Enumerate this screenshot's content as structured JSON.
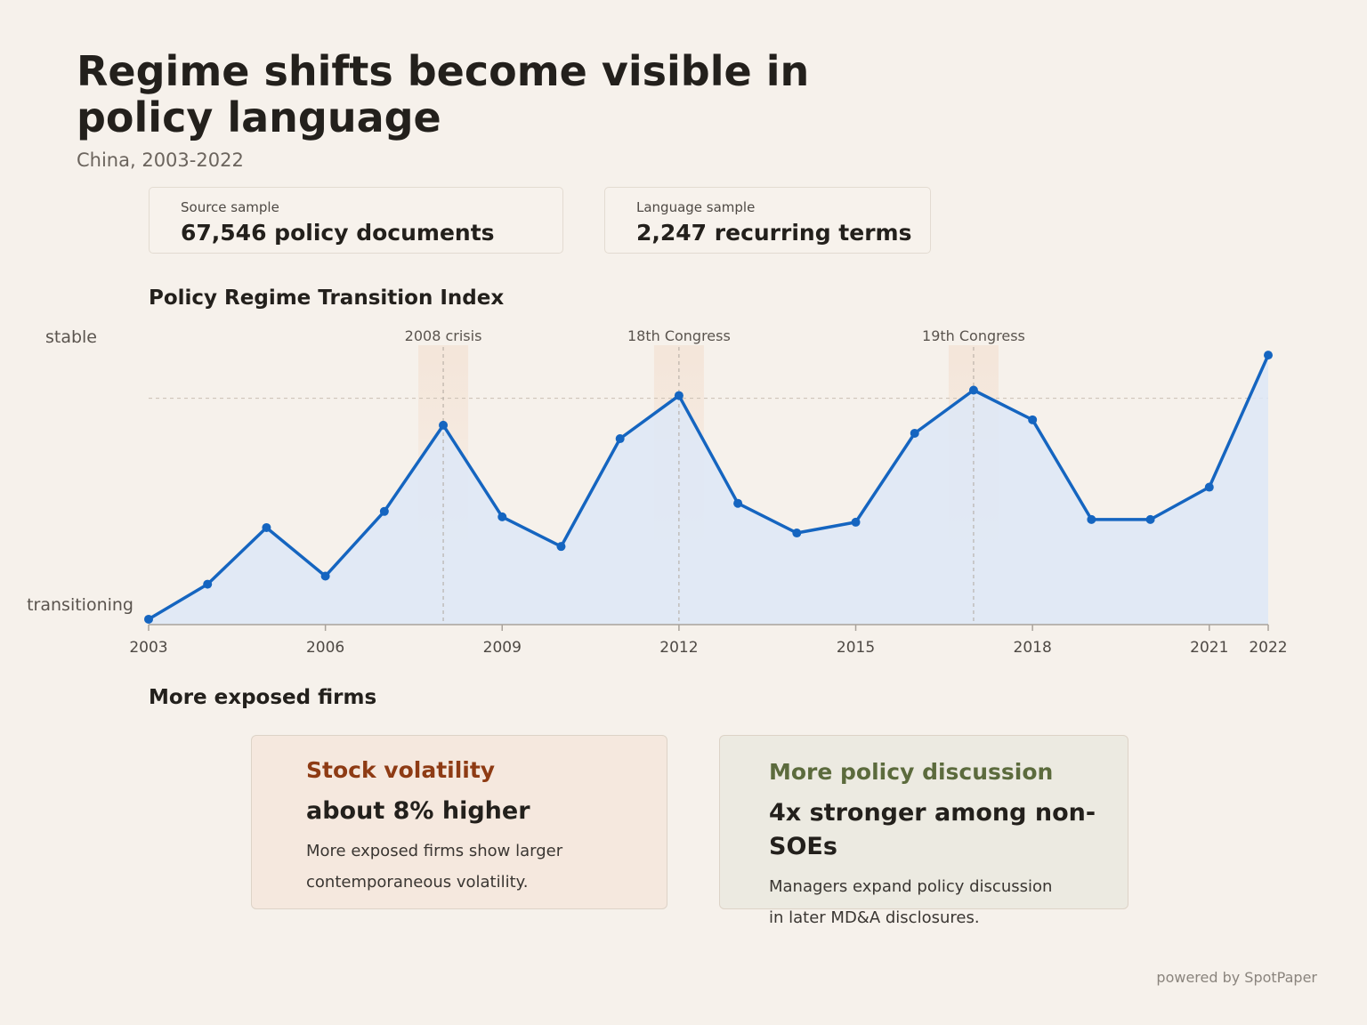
{
  "header": {
    "title": "Regime shifts become visible in policy language",
    "subtitle": "China, 2003-2022"
  },
  "stats": [
    {
      "label": "Source sample",
      "value": "67,546 policy documents"
    },
    {
      "label": "Language sample",
      "value": "2,247 recurring terms"
    }
  ],
  "chart_section_title": "Policy Regime Transition Index",
  "chart_data": {
    "type": "area",
    "title": "Policy Regime Transition Index",
    "y_axis_labels": {
      "top": "stable",
      "bottom": "transitioning"
    },
    "x": [
      2003,
      2004,
      2005,
      2006,
      2007,
      2008,
      2009,
      2010,
      2011,
      2012,
      2013,
      2014,
      2015,
      2016,
      2017,
      2018,
      2019,
      2020,
      2021,
      2022
    ],
    "values": [
      0.02,
      0.15,
      0.36,
      0.18,
      0.42,
      0.74,
      0.4,
      0.29,
      0.69,
      0.85,
      0.45,
      0.34,
      0.38,
      0.71,
      0.87,
      0.76,
      0.39,
      0.39,
      0.51,
      1.0
    ],
    "ylim": [
      0,
      1.05
    ],
    "reference_line": 0.84,
    "x_tick_labels": [
      "2003",
      "2006",
      "2009",
      "2012",
      "2015",
      "2018",
      "2021",
      "2022"
    ],
    "x_tick_values": [
      2003,
      2006,
      2009,
      2012,
      2015,
      2018,
      2021,
      2022
    ],
    "events": [
      {
        "label": "2008 crisis",
        "x": 2008
      },
      {
        "label": "18th Congress",
        "x": 2012
      },
      {
        "label": "19th Congress",
        "x": 2017
      }
    ],
    "line_color": "#1565c0",
    "fill_color": "#dde8f7"
  },
  "firms_section_title": "More exposed firms",
  "cards": [
    {
      "heading": "Stock volatility",
      "value": "about 8% higher",
      "description": "More exposed firms show larger contemporaneous volatility.",
      "accent": "#8e3b14"
    },
    {
      "heading": "More policy discussion",
      "value": "4x stronger among non-SOEs",
      "description": "Managers expand policy discussion in later MD&A disclosures.",
      "accent": "#5c6b3d"
    }
  ],
  "footer": {
    "text": "powered by SpotPaper"
  }
}
